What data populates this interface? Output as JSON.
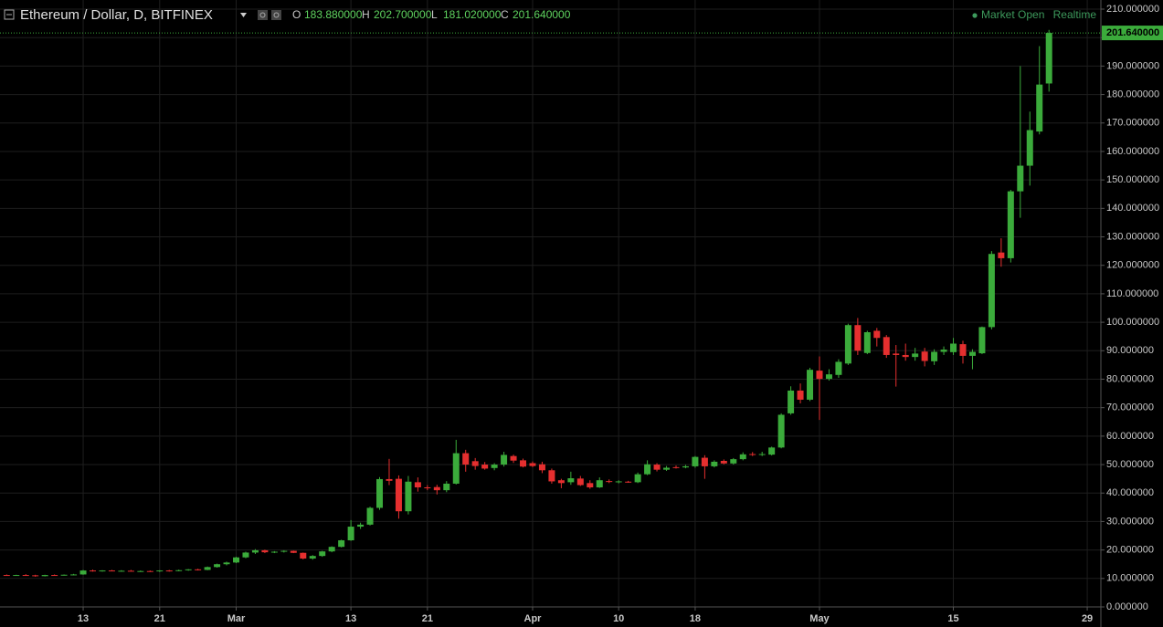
{
  "chart_data": {
    "type": "candlestick",
    "title": "Ethereum / Dollar, D, BITFINEX",
    "header_ohlc": [
      {
        "key": "O",
        "value": "183.880000"
      },
      {
        "key": "H",
        "value": "202.700000"
      },
      {
        "key": "L",
        "value": "181.020000"
      },
      {
        "key": "C",
        "value": "201.640000"
      }
    ],
    "status": "Market Open",
    "feed": "Realtime",
    "up_color": "#3bab3b",
    "down_color": "#e52f2f",
    "grid": true,
    "categories": [
      null,
      null,
      null,
      null,
      null,
      null,
      null,
      null,
      "13",
      null,
      null,
      null,
      null,
      null,
      null,
      null,
      "21",
      null,
      null,
      null,
      null,
      null,
      null,
      null,
      "Mar",
      null,
      null,
      null,
      null,
      null,
      null,
      null,
      null,
      null,
      null,
      null,
      "13",
      null,
      null,
      null,
      null,
      null,
      null,
      null,
      "21",
      null,
      null,
      null,
      null,
      null,
      null,
      null,
      null,
      null,
      null,
      "Apr",
      null,
      null,
      null,
      null,
      null,
      null,
      null,
      null,
      "10",
      null,
      null,
      null,
      null,
      null,
      null,
      null,
      "18",
      null,
      null,
      null,
      null,
      null,
      null,
      null,
      null,
      null,
      null,
      null,
      null,
      "May",
      null,
      null,
      null,
      null,
      null,
      null,
      null,
      null,
      null,
      null,
      null,
      null,
      null,
      "15",
      null,
      null,
      null,
      null,
      null,
      null,
      null,
      null,
      null,
      null,
      null,
      null,
      null,
      "29"
    ],
    "open": [
      11.2,
      11.0,
      11.2,
      11.1,
      10.8,
      11.2,
      11.1,
      11.3,
      11.4,
      12.8,
      12.6,
      12.8,
      12.6,
      12.7,
      12.5,
      12.6,
      12.5,
      12.8,
      12.6,
      12.9,
      13.2,
      13.0,
      14.0,
      15.0,
      15.6,
      17.4,
      19.1,
      19.9,
      19.2,
      19.4,
      19.7,
      19.0,
      17.0,
      17.9,
      19.5,
      21.1,
      23.4,
      28.2,
      28.9,
      34.8,
      44.9,
      45.0,
      33.6,
      43.8,
      42.0,
      42.1,
      41.0,
      43.3,
      54.0,
      51.2,
      50.0,
      48.8,
      50.0,
      53.0,
      51.5,
      50.5,
      50.1,
      48.0,
      44.5,
      43.8,
      45.1,
      43.5,
      42.0,
      44.2,
      43.8,
      44.0,
      43.8,
      46.6,
      50.0,
      48.2,
      49.1,
      49.0,
      49.4,
      52.4,
      49.4,
      51.3,
      50.4,
      51.9,
      53.7,
      53.4,
      53.5,
      56.0,
      68.0,
      76.0,
      72.8,
      83.0,
      80.1,
      81.5,
      85.5,
      99.0,
      89.2,
      97.0,
      94.8,
      89.0,
      88.5,
      87.8,
      89.7,
      86.3,
      89.6,
      89.5,
      92.3,
      88.2,
      89.1,
      98.3,
      124.5,
      122.5,
      146.0,
      155.0,
      167.0,
      183.88,
      null,
      null,
      null,
      null
    ],
    "high": [
      11.4,
      11.3,
      11.5,
      11.3,
      11.3,
      11.4,
      11.4,
      11.6,
      13.0,
      13.1,
      12.9,
      13.0,
      12.9,
      13.0,
      12.8,
      12.8,
      12.9,
      13.0,
      13.1,
      13.3,
      13.4,
      14.2,
      15.2,
      15.9,
      17.6,
      19.4,
      20.3,
      20.1,
      19.6,
      19.9,
      19.8,
      19.1,
      18.2,
      19.7,
      21.3,
      23.6,
      30.5,
      29.6,
      35.2,
      45.6,
      52.0,
      46.2,
      46.0,
      45.5,
      42.8,
      42.9,
      44.2,
      58.7,
      55.2,
      52.3,
      50.9,
      50.5,
      54.5,
      53.5,
      52.1,
      51.1,
      51.0,
      48.6,
      45.0,
      47.5,
      46.0,
      44.5,
      45.5,
      44.8,
      44.5,
      44.3,
      47.2,
      51.5,
      50.5,
      49.5,
      49.7,
      49.9,
      53.0,
      53.3,
      51.5,
      51.8,
      52.3,
      54.3,
      54.4,
      54.5,
      56.3,
      68.0,
      77.5,
      78.5,
      84.0,
      88.0,
      83.5,
      87.0,
      99.5,
      101.5,
      97.0,
      98.0,
      95.5,
      92.0,
      92.5,
      91.0,
      91.0,
      90.5,
      91.5,
      94.5,
      93.5,
      90.5,
      98.5,
      125.0,
      129.5,
      146.5,
      190.0,
      174.0,
      197.0,
      202.7,
      null,
      null,
      null,
      null
    ],
    "low": [
      10.9,
      10.9,
      11.0,
      10.6,
      10.7,
      11.0,
      11.0,
      11.1,
      11.3,
      12.4,
      12.4,
      12.5,
      12.4,
      12.5,
      12.3,
      12.3,
      12.3,
      12.4,
      12.5,
      12.7,
      12.8,
      12.9,
      13.8,
      14.6,
      15.4,
      17.1,
      18.6,
      18.9,
      18.9,
      19.1,
      18.9,
      16.7,
      16.6,
      17.6,
      19.2,
      20.9,
      23.2,
      27.4,
      28.6,
      34.1,
      42.8,
      31.0,
      32.5,
      40.5,
      41.0,
      39.5,
      40.3,
      43.0,
      47.5,
      48.2,
      48.2,
      48.0,
      49.3,
      50.6,
      49.0,
      49.1,
      47.0,
      43.3,
      41.7,
      42.9,
      42.5,
      41.5,
      41.8,
      43.5,
      43.4,
      43.6,
      43.5,
      46.3,
      47.6,
      47.8,
      48.6,
      48.7,
      48.9,
      45.0,
      49.0,
      50.1,
      50.0,
      51.5,
      53.0,
      53.0,
      53.2,
      55.7,
      67.5,
      71.5,
      72.3,
      65.7,
      79.5,
      80.5,
      85.0,
      88.5,
      88.8,
      91.5,
      87.5,
      77.4,
      86.5,
      86.5,
      84.5,
      85.0,
      88.5,
      88.5,
      85.5,
      83.5,
      88.8,
      97.5,
      119.5,
      121.0,
      136.7,
      148.0,
      166.0,
      181.02,
      null,
      null,
      null,
      null
    ],
    "close": [
      11.0,
      11.2,
      11.1,
      10.8,
      11.2,
      11.1,
      11.3,
      11.4,
      12.8,
      12.6,
      12.8,
      12.6,
      12.7,
      12.6,
      12.6,
      12.5,
      12.8,
      12.6,
      12.9,
      13.2,
      13.0,
      14.0,
      15.0,
      15.6,
      17.4,
      19.1,
      19.9,
      19.2,
      19.4,
      19.7,
      19.0,
      17.0,
      17.9,
      19.5,
      21.1,
      23.4,
      28.2,
      28.9,
      34.8,
      44.9,
      44.3,
      33.6,
      44.0,
      42.0,
      41.7,
      41.0,
      43.3,
      54.0,
      50.0,
      49.5,
      48.6,
      50.0,
      53.4,
      51.4,
      49.3,
      49.5,
      48.0,
      44.1,
      43.5,
      45.2,
      42.8,
      42.0,
      44.5,
      43.9,
      44.1,
      43.9,
      46.6,
      50.1,
      48.2,
      48.9,
      49.0,
      49.4,
      52.7,
      49.4,
      51.0,
      50.4,
      51.9,
      53.6,
      53.4,
      53.7,
      56.0,
      67.5,
      76.0,
      72.8,
      83.3,
      80.1,
      81.7,
      86.1,
      99.0,
      90.0,
      96.5,
      94.5,
      88.5,
      88.5,
      87.8,
      89.0,
      86.4,
      89.6,
      90.4,
      92.5,
      88.2,
      89.6,
      98.3,
      124.0,
      122.5,
      146.0,
      155.0,
      167.5,
      183.5,
      201.64,
      null,
      null,
      null,
      null
    ],
    "ylim": [
      0,
      210
    ],
    "yticks": [
      {
        "value": 0,
        "label": "0.000000"
      },
      {
        "value": 10,
        "label": "10.000000"
      },
      {
        "value": 20,
        "label": "20.000000"
      },
      {
        "value": 30,
        "label": "30.000000"
      },
      {
        "value": 40,
        "label": "40.000000"
      },
      {
        "value": 50,
        "label": "50.000000"
      },
      {
        "value": 60,
        "label": "60.000000"
      },
      {
        "value": 70,
        "label": "70.000000"
      },
      {
        "value": 80,
        "label": "80.000000"
      },
      {
        "value": 90,
        "label": "90.000000"
      },
      {
        "value": 100,
        "label": "100.000000"
      },
      {
        "value": 110,
        "label": "110.000000"
      },
      {
        "value": 120,
        "label": "120.000000"
      },
      {
        "value": 130,
        "label": "130.000000"
      },
      {
        "value": 140,
        "label": "140.000000"
      },
      {
        "value": 150,
        "label": "150.000000"
      },
      {
        "value": 160,
        "label": "160.000000"
      },
      {
        "value": 170,
        "label": "170.000000"
      },
      {
        "value": 180,
        "label": "180.000000"
      },
      {
        "value": 190,
        "label": "190.000000"
      },
      {
        "value": 200,
        "label": "200.000000"
      },
      {
        "value": 210,
        "label": "210.000000"
      }
    ],
    "last_price": {
      "value": 201.64,
      "label": "201.640000"
    }
  }
}
